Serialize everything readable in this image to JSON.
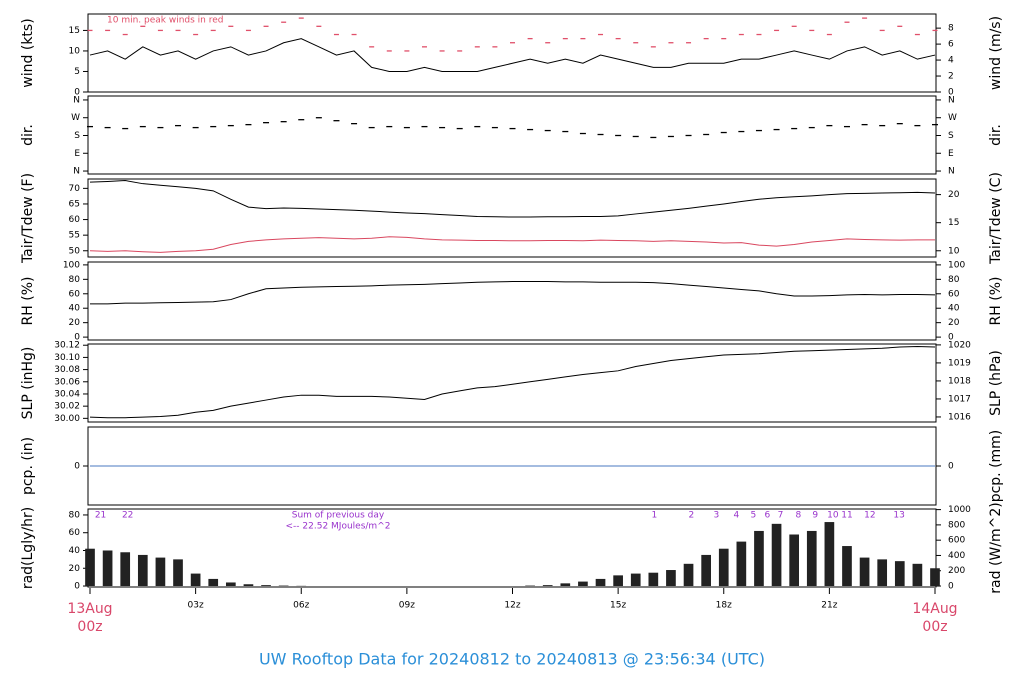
{
  "title": "UW Rooftop Data for 20240812  to  20240813 @ 23:56:34  (UTC)",
  "chart_data": [
    {
      "type": "line",
      "ylabel": "wind (kts)",
      "y2label": "wind (m/s)",
      "note": "10 min. peak winds in red",
      "xlim": [
        0,
        24
      ],
      "ylim": [
        0,
        19
      ],
      "yticks": [
        0,
        5,
        10,
        15
      ],
      "y2lim": [
        0,
        9.77
      ],
      "y2ticks": [
        0,
        2,
        4,
        6,
        8
      ],
      "x": [
        0,
        0.5,
        1,
        1.5,
        2,
        2.5,
        3,
        3.5,
        4,
        4.5,
        5,
        5.5,
        6,
        6.5,
        7,
        7.5,
        8,
        8.5,
        9,
        9.5,
        10,
        10.5,
        11,
        11.5,
        12,
        12.5,
        13,
        13.5,
        14,
        14.5,
        15,
        15.5,
        16,
        16.5,
        17,
        17.5,
        18,
        18.5,
        19,
        19.5,
        20,
        20.5,
        21,
        21.5,
        22,
        22.5,
        23,
        23.5,
        24
      ],
      "series": [
        {
          "color": "#000000",
          "style": "line",
          "values": [
            9,
            10,
            8,
            11,
            9,
            10,
            8,
            10,
            11,
            9,
            10,
            12,
            13,
            11,
            9,
            10,
            6,
            5,
            5,
            6,
            5,
            5,
            5,
            6,
            7,
            8,
            7,
            8,
            7,
            9,
            8,
            7,
            6,
            6,
            7,
            7,
            7,
            8,
            8,
            9,
            10,
            9,
            8,
            10,
            11,
            9,
            10,
            8,
            9
          ]
        },
        {
          "color": "#e0506a",
          "style": "dash",
          "values": [
            15,
            15,
            14,
            16,
            15,
            15,
            14,
            15,
            16,
            15,
            16,
            17,
            18,
            16,
            14,
            14,
            11,
            10,
            10,
            11,
            10,
            10,
            11,
            11,
            12,
            13,
            12,
            13,
            13,
            14,
            13,
            12,
            11,
            12,
            12,
            13,
            13,
            14,
            14,
            15,
            16,
            15,
            14,
            17,
            18,
            15,
            16,
            14,
            15
          ]
        }
      ]
    },
    {
      "type": "scatter",
      "ylabel": "dir.",
      "y2label": "dir.",
      "xlim": [
        0,
        24
      ],
      "ylim": [
        -15,
        380
      ],
      "y2lim": [
        -15,
        380
      ],
      "yticks": [
        {
          "value": 0,
          "label": "N"
        },
        {
          "value": 90,
          "label": "E"
        },
        {
          "value": 180,
          "label": "S"
        },
        {
          "value": 270,
          "label": "W"
        },
        {
          "value": 360,
          "label": "N"
        }
      ],
      "y2ticks": [
        {
          "value": 0,
          "label": "N"
        },
        {
          "value": 90,
          "label": "E"
        },
        {
          "value": 180,
          "label": "S"
        },
        {
          "value": 270,
          "label": "W"
        },
        {
          "value": 360,
          "label": "N"
        }
      ],
      "x": [
        0,
        0.5,
        1,
        1.5,
        2,
        2.5,
        3,
        3.5,
        4,
        4.5,
        5,
        5.5,
        6,
        6.5,
        7,
        7.5,
        8,
        8.5,
        9,
        9.5,
        10,
        10.5,
        11,
        11.5,
        12,
        12.5,
        13,
        13.5,
        14,
        14.5,
        15,
        15.5,
        16,
        16.5,
        17,
        17.5,
        18,
        18.5,
        19,
        19.5,
        20,
        20.5,
        21,
        21.5,
        22,
        22.5,
        23,
        23.5,
        24
      ],
      "series": [
        {
          "color": "#000000",
          "style": "dash",
          "values": [
            225,
            220,
            215,
            225,
            220,
            230,
            220,
            225,
            230,
            235,
            245,
            250,
            260,
            270,
            255,
            240,
            220,
            225,
            220,
            225,
            220,
            215,
            225,
            220,
            215,
            210,
            205,
            200,
            190,
            185,
            180,
            175,
            170,
            175,
            180,
            185,
            195,
            200,
            205,
            210,
            215,
            220,
            230,
            225,
            235,
            230,
            240,
            230,
            235
          ]
        }
      ]
    },
    {
      "type": "line",
      "ylabel": "Tair/Tdew (F)",
      "y2label": "Tair/Tdew (C)",
      "xlim": [
        0,
        24
      ],
      "ylim": [
        48,
        73
      ],
      "yticks": [
        50,
        55,
        60,
        65,
        70
      ],
      "y2lim": [
        8.89,
        22.78
      ],
      "y2ticks": [
        10,
        15,
        20
      ],
      "x": [
        0,
        0.5,
        1,
        1.5,
        2,
        2.5,
        3,
        3.5,
        4,
        4.5,
        5,
        5.5,
        6,
        6.5,
        7,
        7.5,
        8,
        8.5,
        9,
        9.5,
        10,
        10.5,
        11,
        11.5,
        12,
        12.5,
        13,
        13.5,
        14,
        14.5,
        15,
        15.5,
        16,
        16.5,
        17,
        17.5,
        18,
        18.5,
        19,
        19.5,
        20,
        20.5,
        21,
        21.5,
        22,
        22.5,
        23,
        23.5,
        24
      ],
      "series": [
        {
          "color": "#000000",
          "style": "line",
          "values": [
            72,
            72.2,
            72.5,
            71.5,
            71,
            70.5,
            70,
            69.2,
            66.5,
            64,
            63.5,
            63.7,
            63.6,
            63.4,
            63.2,
            63,
            62.7,
            62.4,
            62.1,
            61.9,
            61.6,
            61.3,
            61,
            60.9,
            60.8,
            60.8,
            60.9,
            60.9,
            61,
            61,
            61.2,
            61.8,
            62.4,
            63,
            63.6,
            64.3,
            65,
            65.8,
            66.5,
            67,
            67.3,
            67.6,
            68,
            68.3,
            68.4,
            68.5,
            68.6,
            68.7,
            68.5
          ]
        },
        {
          "color": "#d9475f",
          "style": "line",
          "values": [
            50,
            49.8,
            50,
            49.7,
            49.5,
            49.8,
            50,
            50.5,
            52,
            53,
            53.5,
            53.8,
            54,
            54.2,
            54,
            53.8,
            54,
            54.5,
            54.3,
            53.8,
            53.5,
            53.4,
            53.3,
            53.3,
            53.2,
            53.2,
            53.3,
            53.3,
            53.2,
            53.4,
            53.3,
            53.2,
            53,
            53.2,
            53,
            52.8,
            52.5,
            52.6,
            51.8,
            51.5,
            52,
            52.8,
            53.3,
            53.8,
            53.6,
            53.5,
            53.4,
            53.5,
            53.5
          ]
        }
      ]
    },
    {
      "type": "line",
      "ylabel": "RH (%)",
      "y2label": "RH (%)",
      "xlim": [
        0,
        24
      ],
      "ylim": [
        -4,
        104
      ],
      "yticks": [
        0,
        20,
        40,
        60,
        80,
        100
      ],
      "y2lim": [
        -4,
        104
      ],
      "y2ticks": [
        0,
        20,
        40,
        60,
        80,
        100
      ],
      "x": [
        0,
        0.5,
        1,
        1.5,
        2,
        2.5,
        3,
        3.5,
        4,
        4.5,
        5,
        5.5,
        6,
        6.5,
        7,
        7.5,
        8,
        8.5,
        9,
        9.5,
        10,
        10.5,
        11,
        11.5,
        12,
        12.5,
        13,
        13.5,
        14,
        14.5,
        15,
        15.5,
        16,
        16.5,
        17,
        17.5,
        18,
        18.5,
        19,
        19.5,
        20,
        20.5,
        21,
        21.5,
        22,
        22.5,
        23,
        23.5,
        24
      ],
      "series": [
        {
          "color": "#000000",
          "style": "line",
          "values": [
            46,
            46,
            47,
            47,
            47.5,
            48,
            48.5,
            49,
            52,
            60,
            67,
            68,
            69,
            69.5,
            70,
            70.5,
            71,
            72,
            72.5,
            73,
            74,
            75,
            76,
            76.5,
            77,
            77,
            77,
            76.5,
            76.5,
            76,
            76,
            76,
            75.5,
            74,
            72,
            70,
            68,
            66,
            64,
            60,
            57,
            57,
            57.5,
            58.5,
            59,
            58.5,
            59,
            59,
            58.5
          ]
        }
      ]
    },
    {
      "type": "line",
      "ylabel": "SLP (inHg)",
      "y2label": "SLP (hPa)",
      "xlim": [
        0,
        24
      ],
      "ylim": [
        29.994,
        30.122
      ],
      "yticks": [
        {
          "value": 30,
          "label": "30.00"
        },
        {
          "value": 30.02,
          "label": "30.02"
        },
        {
          "value": 30.04,
          "label": "30.04"
        },
        {
          "value": 30.06,
          "label": "30.06"
        },
        {
          "value": 30.08,
          "label": "30.08"
        },
        {
          "value": 30.1,
          "label": "30.10"
        },
        {
          "value": 30.12,
          "label": "30.12"
        }
      ],
      "y2lim": [
        1015.72,
        1020.05
      ],
      "y2ticks": [
        1016,
        1017,
        1018,
        1019,
        1020
      ],
      "x": [
        0,
        0.5,
        1,
        1.5,
        2,
        2.5,
        3,
        3.5,
        4,
        4.5,
        5,
        5.5,
        6,
        6.5,
        7,
        7.5,
        8,
        8.5,
        9,
        9.5,
        10,
        10.5,
        11,
        11.5,
        12,
        12.5,
        13,
        13.5,
        14,
        14.5,
        15,
        15.5,
        16,
        16.5,
        17,
        17.5,
        18,
        18.5,
        19,
        19.5,
        20,
        20.5,
        21,
        21.5,
        22,
        22.5,
        23,
        23.5,
        24
      ],
      "series": [
        {
          "color": "#000000",
          "style": "line",
          "values": [
            30.002,
            30.001,
            30.001,
            30.002,
            30.003,
            30.005,
            30.01,
            30.013,
            30.02,
            30.025,
            30.03,
            30.035,
            30.038,
            30.038,
            30.036,
            30.036,
            30.036,
            30.035,
            30.033,
            30.031,
            30.04,
            30.045,
            30.05,
            30.052,
            30.056,
            30.06,
            30.064,
            30.068,
            30.072,
            30.075,
            30.078,
            30.085,
            30.09,
            30.095,
            30.098,
            30.101,
            30.104,
            30.105,
            30.106,
            30.108,
            30.11,
            30.111,
            30.112,
            30.113,
            30.114,
            30.115,
            30.117,
            30.118,
            30.117
          ]
        }
      ]
    },
    {
      "type": "line",
      "ylabel": "pcp. (in)",
      "y2label": "pcp. (mm)",
      "xlim": [
        0,
        24
      ],
      "ylim": [
        -1,
        1
      ],
      "yticks": [
        0
      ],
      "y2lim": [
        -25.4,
        25.4
      ],
      "y2ticks": [
        0
      ],
      "x": [
        0,
        24
      ],
      "series": [
        {
          "color": "#4a7ac0",
          "style": "line",
          "values": [
            0,
            0
          ]
        }
      ]
    },
    {
      "type": "bar",
      "ylabel": "rad(Lgly/hr)",
      "y2label": "rad (W/m^2)",
      "notes": [
        "Sum of previous day",
        "<-- 22.52 MJoules/m^2"
      ],
      "hour_labels": {
        "x": [
          0.3,
          1.07,
          16.03,
          17.08,
          17.79,
          18.36,
          18.84,
          19.24,
          19.61,
          20.12,
          20.6,
          21.1,
          21.5,
          22.15,
          22.98
        ],
        "labels": [
          "21",
          "22",
          "1",
          "2",
          "3",
          "4",
          "5",
          "6",
          "7",
          "8",
          "9",
          "10",
          "11",
          "12",
          "13"
        ],
        "color": "#9933cc"
      },
      "xlim": [
        0,
        24
      ],
      "ylim": [
        -1.1,
        86.7
      ],
      "yticks": [
        0,
        20,
        40,
        60,
        80
      ],
      "y2lim": [
        -12.8,
        1008
      ],
      "y2ticks": [
        0,
        200,
        400,
        600,
        800,
        1000
      ],
      "xticks": [
        {
          "value": 0,
          "label": "00z"
        },
        {
          "value": 3,
          "label": "03z"
        },
        {
          "value": 6,
          "label": "06z"
        },
        {
          "value": 9,
          "label": "09z"
        },
        {
          "value": 12,
          "label": "12z"
        },
        {
          "value": 15,
          "label": "15z"
        },
        {
          "value": 18,
          "label": "18z"
        },
        {
          "value": 21,
          "label": "21z"
        },
        {
          "value": 24,
          "label": "00z"
        }
      ],
      "date_labels": [
        {
          "value": 0,
          "label": "13Aug"
        },
        {
          "value": 24,
          "label": "14Aug"
        }
      ],
      "x": [
        0,
        0.5,
        1,
        1.5,
        2,
        2.5,
        3,
        3.5,
        4,
        4.5,
        5,
        5.5,
        6,
        6.5,
        7,
        7.5,
        8,
        8.5,
        9,
        9.5,
        10,
        10.5,
        11,
        11.5,
        12,
        12.5,
        13,
        13.5,
        14,
        14.5,
        15,
        15.5,
        16,
        16.5,
        17,
        17.5,
        18,
        18.5,
        19,
        19.5,
        20,
        20.5,
        21,
        21.5,
        22,
        22.5,
        23,
        23.5,
        24
      ],
      "series": [
        {
          "color": "#222222",
          "values": [
            42,
            40,
            38,
            35,
            32,
            30,
            14,
            8,
            4,
            2,
            1,
            0.5,
            0.2,
            0,
            0,
            0,
            0,
            0,
            0,
            0,
            0,
            0,
            0,
            0,
            0,
            0.5,
            1,
            3,
            5,
            8,
            12,
            14,
            15,
            18,
            25,
            35,
            42,
            50,
            62,
            70,
            58,
            62,
            72,
            45,
            32,
            30,
            28,
            25,
            20
          ]
        }
      ]
    }
  ]
}
